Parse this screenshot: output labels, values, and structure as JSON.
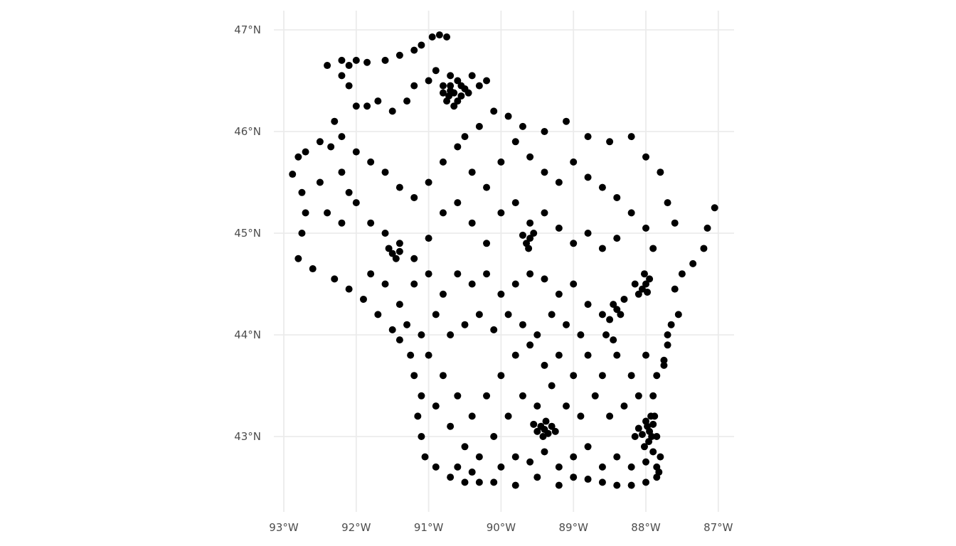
{
  "chart_data": {
    "type": "scatter",
    "title": "",
    "xlabel": "",
    "ylabel": "",
    "xlim": [
      -93.12,
      -86.78
    ],
    "ylim": [
      42.3,
      47.2
    ],
    "grid": true,
    "legend": "none",
    "point_color": "#000000",
    "grid_color": "#ebebeb",
    "x_ticks": [
      {
        "value": -93,
        "label": "93°W"
      },
      {
        "value": -92,
        "label": "92°W"
      },
      {
        "value": -91,
        "label": "91°W"
      },
      {
        "value": -90,
        "label": "90°W"
      },
      {
        "value": -89,
        "label": "89°W"
      },
      {
        "value": -88,
        "label": "88°W"
      },
      {
        "value": -87,
        "label": "87°W"
      }
    ],
    "y_ticks": [
      {
        "value": 43,
        "label": "43°N"
      },
      {
        "value": 44,
        "label": "44°N"
      },
      {
        "value": 45,
        "label": "45°N"
      },
      {
        "value": 46,
        "label": "46°N"
      },
      {
        "value": 47,
        "label": "47°N"
      }
    ],
    "points": [
      [
        -92.2,
        46.7
      ],
      [
        -92.1,
        46.65
      ],
      [
        -92.0,
        46.7
      ],
      [
        -91.85,
        46.68
      ],
      [
        -91.6,
        46.7
      ],
      [
        -91.4,
        46.75
      ],
      [
        -91.2,
        46.8
      ],
      [
        -91.1,
        46.85
      ],
      [
        -90.95,
        46.93
      ],
      [
        -90.85,
        46.95
      ],
      [
        -90.75,
        46.93
      ],
      [
        -90.9,
        46.6
      ],
      [
        -90.8,
        46.45
      ],
      [
        -90.7,
        46.4
      ],
      [
        -90.6,
        46.5
      ],
      [
        -90.5,
        46.42
      ],
      [
        -90.4,
        46.55
      ],
      [
        -90.3,
        46.45
      ],
      [
        -90.2,
        46.5
      ],
      [
        -90.75,
        46.3
      ],
      [
        -90.65,
        46.25
      ],
      [
        -90.55,
        46.35
      ],
      [
        -91.0,
        46.5
      ],
      [
        -91.2,
        46.45
      ],
      [
        -91.3,
        46.3
      ],
      [
        -91.5,
        46.2
      ],
      [
        -91.7,
        46.3
      ],
      [
        -91.85,
        46.25
      ],
      [
        -92.0,
        46.25
      ],
      [
        -92.1,
        46.45
      ],
      [
        -92.2,
        46.55
      ],
      [
        -92.4,
        46.65
      ],
      [
        -92.3,
        46.1
      ],
      [
        -92.2,
        45.95
      ],
      [
        -92.35,
        45.85
      ],
      [
        -92.5,
        45.9
      ],
      [
        -92.7,
        45.8
      ],
      [
        -92.8,
        45.75
      ],
      [
        -92.88,
        45.58
      ],
      [
        -92.75,
        45.4
      ],
      [
        -92.7,
        45.2
      ],
      [
        -92.75,
        45.0
      ],
      [
        -92.8,
        44.75
      ],
      [
        -92.6,
        44.65
      ],
      [
        -92.3,
        44.55
      ],
      [
        -92.1,
        44.45
      ],
      [
        -91.9,
        44.35
      ],
      [
        -91.7,
        44.2
      ],
      [
        -91.5,
        44.05
      ],
      [
        -91.4,
        43.95
      ],
      [
        -91.25,
        43.8
      ],
      [
        -91.2,
        43.6
      ],
      [
        -91.1,
        43.4
      ],
      [
        -91.15,
        43.2
      ],
      [
        -91.1,
        43.0
      ],
      [
        -91.05,
        42.8
      ],
      [
        -90.9,
        42.7
      ],
      [
        -90.7,
        42.6
      ],
      [
        -90.5,
        42.55
      ],
      [
        -90.3,
        42.55
      ],
      [
        -90.1,
        42.55
      ],
      [
        -89.8,
        42.52
      ],
      [
        -89.5,
        42.6
      ],
      [
        -89.2,
        42.52
      ],
      [
        -89.0,
        42.6
      ],
      [
        -88.8,
        42.58
      ],
      [
        -88.6,
        42.55
      ],
      [
        -88.4,
        42.52
      ],
      [
        -88.2,
        42.52
      ],
      [
        -88.0,
        42.55
      ],
      [
        -87.85,
        42.6
      ],
      [
        -87.8,
        42.8
      ],
      [
        -87.85,
        43.0
      ],
      [
        -87.88,
        43.2
      ],
      [
        -87.9,
        43.4
      ],
      [
        -87.85,
        43.6
      ],
      [
        -87.75,
        43.75
      ],
      [
        -87.7,
        43.9
      ],
      [
        -87.65,
        44.1
      ],
      [
        -87.55,
        44.2
      ],
      [
        -87.6,
        44.45
      ],
      [
        -87.5,
        44.6
      ],
      [
        -87.35,
        44.7
      ],
      [
        -87.2,
        44.85
      ],
      [
        -87.15,
        45.05
      ],
      [
        -87.05,
        45.25
      ],
      [
        -87.6,
        45.1
      ],
      [
        -87.7,
        45.3
      ],
      [
        -87.8,
        45.6
      ],
      [
        -88.0,
        45.75
      ],
      [
        -88.2,
        45.95
      ],
      [
        -88.5,
        45.9
      ],
      [
        -88.8,
        45.95
      ],
      [
        -89.1,
        46.1
      ],
      [
        -89.4,
        46.0
      ],
      [
        -89.7,
        46.05
      ],
      [
        -89.9,
        46.15
      ],
      [
        -90.1,
        46.2
      ],
      [
        -90.3,
        46.05
      ],
      [
        -90.5,
        45.95
      ],
      [
        -90.7,
        46.45
      ],
      [
        -90.65,
        46.38
      ],
      [
        -90.72,
        46.35
      ],
      [
        -90.6,
        46.3
      ],
      [
        -90.8,
        46.38
      ],
      [
        -90.7,
        46.55
      ],
      [
        -90.55,
        46.45
      ],
      [
        -90.45,
        46.38
      ],
      [
        -92.0,
        45.8
      ],
      [
        -91.8,
        45.7
      ],
      [
        -91.6,
        45.6
      ],
      [
        -91.4,
        45.45
      ],
      [
        -91.2,
        45.35
      ],
      [
        -91.0,
        45.5
      ],
      [
        -90.8,
        45.7
      ],
      [
        -90.6,
        45.85
      ],
      [
        -90.4,
        45.6
      ],
      [
        -90.2,
        45.45
      ],
      [
        -90.0,
        45.7
      ],
      [
        -89.8,
        45.9
      ],
      [
        -89.6,
        45.75
      ],
      [
        -89.4,
        45.6
      ],
      [
        -89.2,
        45.5
      ],
      [
        -89.0,
        45.7
      ],
      [
        -88.8,
        45.55
      ],
      [
        -88.6,
        45.45
      ],
      [
        -88.4,
        45.35
      ],
      [
        -88.2,
        45.2
      ],
      [
        -88.0,
        45.05
      ],
      [
        -87.9,
        44.85
      ],
      [
        -92.0,
        45.3
      ],
      [
        -91.8,
        45.1
      ],
      [
        -91.6,
        45.0
      ],
      [
        -91.4,
        44.9
      ],
      [
        -91.2,
        44.75
      ],
      [
        -91.0,
        44.95
      ],
      [
        -90.8,
        45.2
      ],
      [
        -90.6,
        45.3
      ],
      [
        -90.4,
        45.1
      ],
      [
        -90.2,
        44.9
      ],
      [
        -90.0,
        45.2
      ],
      [
        -89.8,
        45.3
      ],
      [
        -89.6,
        45.1
      ],
      [
        -89.4,
        45.2
      ],
      [
        -89.2,
        45.05
      ],
      [
        -89.0,
        44.9
      ],
      [
        -88.8,
        45.0
      ],
      [
        -88.6,
        44.85
      ],
      [
        -88.4,
        44.95
      ],
      [
        -92.2,
        45.1
      ],
      [
        -92.4,
        45.2
      ],
      [
        -92.5,
        45.5
      ],
      [
        -92.2,
        45.6
      ],
      [
        -92.1,
        45.4
      ],
      [
        -91.5,
        44.8
      ],
      [
        -91.45,
        44.75
      ],
      [
        -91.55,
        44.85
      ],
      [
        -91.4,
        44.82
      ],
      [
        -89.6,
        44.95
      ],
      [
        -89.65,
        44.9
      ],
      [
        -89.55,
        45.0
      ],
      [
        -89.7,
        44.98
      ],
      [
        -89.62,
        44.85
      ],
      [
        -91.8,
        44.6
      ],
      [
        -91.6,
        44.5
      ],
      [
        -91.4,
        44.3
      ],
      [
        -91.2,
        44.5
      ],
      [
        -91.0,
        44.6
      ],
      [
        -90.8,
        44.4
      ],
      [
        -90.6,
        44.6
      ],
      [
        -90.4,
        44.5
      ],
      [
        -90.2,
        44.6
      ],
      [
        -90.0,
        44.4
      ],
      [
        -89.8,
        44.5
      ],
      [
        -89.6,
        44.6
      ],
      [
        -89.4,
        44.55
      ],
      [
        -89.2,
        44.4
      ],
      [
        -89.0,
        44.5
      ],
      [
        -88.8,
        44.3
      ],
      [
        -88.6,
        44.2
      ],
      [
        -91.3,
        44.1
      ],
      [
        -91.1,
        44.0
      ],
      [
        -90.9,
        44.2
      ],
      [
        -90.7,
        44.0
      ],
      [
        -90.5,
        44.1
      ],
      [
        -90.3,
        44.2
      ],
      [
        -90.1,
        44.05
      ],
      [
        -89.9,
        44.2
      ],
      [
        -89.7,
        44.1
      ],
      [
        -89.5,
        44.0
      ],
      [
        -89.3,
        44.2
      ],
      [
        -89.1,
        44.1
      ],
      [
        -88.9,
        44.0
      ],
      [
        -88.0,
        44.5
      ],
      [
        -88.05,
        44.45
      ],
      [
        -87.95,
        44.55
      ],
      [
        -88.1,
        44.4
      ],
      [
        -88.02,
        44.6
      ],
      [
        -87.98,
        44.42
      ],
      [
        -88.15,
        44.5
      ],
      [
        -88.4,
        44.25
      ],
      [
        -88.45,
        44.3
      ],
      [
        -88.35,
        44.2
      ],
      [
        -88.5,
        44.15
      ],
      [
        -88.3,
        44.35
      ],
      [
        -88.55,
        44.0
      ],
      [
        -88.45,
        43.95
      ],
      [
        -91.0,
        43.8
      ],
      [
        -90.8,
        43.6
      ],
      [
        -90.6,
        43.4
      ],
      [
        -90.4,
        43.2
      ],
      [
        -90.2,
        43.4
      ],
      [
        -90.0,
        43.6
      ],
      [
        -89.8,
        43.8
      ],
      [
        -89.6,
        43.9
      ],
      [
        -89.4,
        43.7
      ],
      [
        -89.2,
        43.8
      ],
      [
        -89.0,
        43.6
      ],
      [
        -88.8,
        43.8
      ],
      [
        -88.6,
        43.6
      ],
      [
        -88.4,
        43.8
      ],
      [
        -88.2,
        43.6
      ],
      [
        -88.0,
        43.8
      ],
      [
        -90.9,
        43.3
      ],
      [
        -90.7,
        43.1
      ],
      [
        -90.5,
        42.9
      ],
      [
        -90.3,
        42.8
      ],
      [
        -90.1,
        43.0
      ],
      [
        -89.9,
        43.2
      ],
      [
        -89.7,
        43.4
      ],
      [
        -89.5,
        43.3
      ],
      [
        -89.3,
        43.5
      ],
      [
        -89.1,
        43.3
      ],
      [
        -88.9,
        43.2
      ],
      [
        -88.7,
        43.4
      ],
      [
        -88.5,
        43.2
      ],
      [
        -88.3,
        43.3
      ],
      [
        -88.1,
        43.4
      ],
      [
        -90.6,
        42.7
      ],
      [
        -90.4,
        42.65
      ],
      [
        -90.0,
        42.7
      ],
      [
        -89.8,
        42.8
      ],
      [
        -89.6,
        42.75
      ],
      [
        -89.4,
        42.85
      ],
      [
        -89.2,
        42.7
      ],
      [
        -89.0,
        42.8
      ],
      [
        -88.8,
        42.9
      ],
      [
        -88.6,
        42.7
      ],
      [
        -88.4,
        42.8
      ],
      [
        -88.2,
        42.7
      ],
      [
        -88.0,
        42.75
      ],
      [
        -89.4,
        43.07
      ],
      [
        -89.45,
        43.1
      ],
      [
        -89.35,
        43.03
      ],
      [
        -89.5,
        43.05
      ],
      [
        -89.3,
        43.1
      ],
      [
        -89.42,
        43.0
      ],
      [
        -89.38,
        43.15
      ],
      [
        -89.55,
        43.12
      ],
      [
        -89.25,
        43.05
      ],
      [
        -87.95,
        43.05
      ],
      [
        -87.98,
        43.1
      ],
      [
        -87.92,
        43.0
      ],
      [
        -88.0,
        43.15
      ],
      [
        -88.05,
        43.02
      ],
      [
        -87.9,
        43.12
      ],
      [
        -88.1,
        43.08
      ],
      [
        -87.96,
        42.95
      ],
      [
        -88.02,
        42.9
      ],
      [
        -88.15,
        43.0
      ],
      [
        -87.93,
        43.2
      ],
      [
        -87.85,
        42.7
      ],
      [
        -87.82,
        42.65
      ],
      [
        -87.9,
        42.85
      ],
      [
        -87.75,
        43.7
      ],
      [
        -87.7,
        44.0
      ]
    ]
  }
}
